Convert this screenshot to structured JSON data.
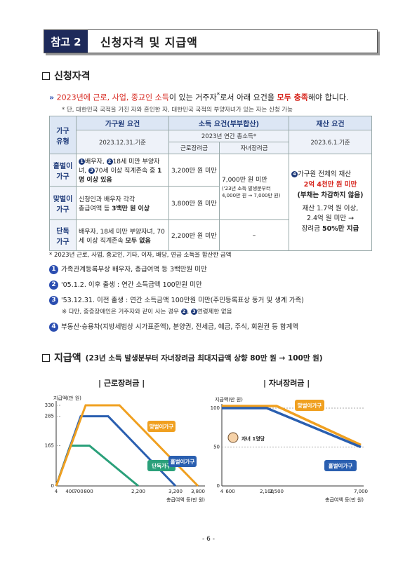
{
  "header": {
    "tag": "참고 2",
    "title": "신청자격 및 지급액"
  },
  "section1": {
    "heading": "신청자격",
    "line_a": "2023년에 ",
    "line_b": "근로, 사업, 종교인 소득",
    "line_c": "이 있는 거주자",
    "line_d": "로서 아래 요건을 ",
    "line_e": "모두 충족",
    "line_f": "해야 합니다.",
    "note": "* 단, 대한민국 국적을 가진 자와 혼인한 자, 대한민국 국적의 부양자녀가 있는 자는 신청 가능"
  },
  "table": {
    "h_type": "가구 유형",
    "h_member": "가구원 요건",
    "h_income": "소득 요건(부부합산)",
    "h_asset": "재산 요건",
    "d_member": "2023.12.31.기준",
    "d_income": "2023년 연간 총소득*",
    "d_asset": "2023.6.1.기준",
    "c_earned": "근로장려금",
    "c_child": "자녀장려금",
    "rows": [
      {
        "type": "홑벌이 가구",
        "member_a": "배우자, ",
        "member_b": "18세 미만 부양자녀, ",
        "member_c": "70세 이상 직계존속 중 ",
        "member_d": "1명 이상 있음",
        "earned": "3,200만 원 미만"
      },
      {
        "type": "맞벌이 가구",
        "member_a": "신청인과 배우자 각각 ",
        "member_b": "총급여액 등 ",
        "member_c": "3백만 원 이상",
        "earned": "3,800만 원 미만"
      },
      {
        "type": "단독 가구",
        "member_a": "배우자, 18세 미만 부양자녀, 70세 이상 직계존속 ",
        "member_b": "모두 없음",
        "earned": "2,200만 원 미만",
        "child": "–"
      }
    ],
    "child_main": "7,000만 원 미만",
    "child_note_a": "('23년 소득 발생분부터",
    "child_note_b": "4,000만 원 → 7,000만 원)",
    "asset_a": "가구원 전체의 재산",
    "asset_b": "2억 4천만 원 미만",
    "asset_c": "(부채는 차감하지 않음)",
    "asset_d": "재산 1.7억 원 이상,",
    "asset_e": "2.4억 원 미만 →",
    "asset_f": "장려금 ",
    "asset_g": "50%만 지급"
  },
  "footnotes": {
    "star": "* 2023년 근로, 사업, 종교인, 기타, 이자, 배당, 연금 소득을 합산한 금액",
    "n1": "가족관계등록부상 배우자, 총급여액 등 3백만원 미만",
    "n2": "'05.1.2. 이후 출생 : 연간 소득금액 100만원 미만",
    "n3": "'53.12.31. 이전 출생 : 연간 소득금액 100만원 미만(주민등록표상 동거 및 생계 가족)",
    "n3_note_a": "※ 다만, 중증장애인은 거주자와 같이 사는 경우 ",
    "n3_note_b": "연령제한 없음",
    "n4": "부동산·승용차(지방세법상 시가표준액), 분양권, 전세금, 예금, 주식, 회원권 등 합계액"
  },
  "section2": {
    "heading": "지급액",
    "sub_a": "(23년 소득 발생분부터 자녀장려금 ",
    "sub_b": "최대지급액 상향",
    "sub_c": " 80만 원 → 100만 원)"
  },
  "charts": {
    "earned_title": "| 근로장려금 |",
    "child_title": "| 자녀장려금 |",
    "earned_ylabel": "지급액(만 원)",
    "earned_xlabel": "총급여액 등(만 원)",
    "child_ylabel": "지급액(만 원)",
    "child_xlabel": "총급여액 등(만 원)",
    "child_badge": "자녀 1명당",
    "colors": {
      "single": "#2aa07a",
      "one_earner": "#2a5fb0",
      "dual_earner": "#f0a020"
    }
  },
  "chart_data": [
    {
      "type": "line",
      "title": "| 근로장려금 |",
      "ylabel": "지급액(만 원)",
      "xlabel": "총급여액 등(만 원)",
      "x_ticks": [
        "4",
        "400",
        "700",
        "800",
        "2,200",
        "3,200",
        "3,800"
      ],
      "y_ticks": [
        "0",
        "165",
        "285",
        "330"
      ],
      "xlim": [
        0,
        3800
      ],
      "ylim": [
        0,
        330
      ],
      "series": [
        {
          "name": "단독가구",
          "x": [
            0,
            400,
            900,
            2200
          ],
          "y": [
            0,
            165,
            165,
            0
          ]
        },
        {
          "name": "홑벌이가구",
          "x": [
            0,
            700,
            1400,
            3200
          ],
          "y": [
            0,
            285,
            285,
            0
          ]
        },
        {
          "name": "맞벌이가구",
          "x": [
            0,
            800,
            1700,
            3800
          ],
          "y": [
            0,
            330,
            330,
            0
          ]
        }
      ]
    },
    {
      "type": "line",
      "title": "| 자녀장려금 |",
      "ylabel": "지급액(만 원)",
      "xlabel": "총급여액 등(만 원)",
      "x_ticks": [
        "4",
        "600",
        "2,100",
        "2,500",
        "7,000"
      ],
      "y_ticks": [
        "0",
        "50",
        "100"
      ],
      "xlim": [
        0,
        7000
      ],
      "ylim": [
        0,
        100
      ],
      "series": [
        {
          "name": "홑벌이가구",
          "x": [
            0,
            2100,
            7000
          ],
          "y": [
            100,
            100,
            50
          ]
        },
        {
          "name": "맞벌이가구",
          "x": [
            0,
            2500,
            7000
          ],
          "y": [
            100,
            100,
            50
          ]
        }
      ]
    }
  ],
  "page": {
    "number": "- 6 -"
  }
}
